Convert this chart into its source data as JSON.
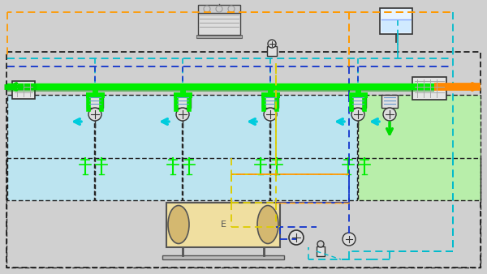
{
  "bg": "#d0d0d0",
  "green_pipe": "#00ee00",
  "green_dark": "#009900",
  "blue_dash": "#1133cc",
  "cyan_dash": "#00bbcc",
  "orange_dash": "#ff9900",
  "yellow_dash": "#ddcc00",
  "cyan_arrow": "#00ccdd",
  "green_arrow": "#00dd00",
  "orange_thick": "#ff8800",
  "pool_blue": "#bce4f0",
  "pool_green": "#b8eeaa",
  "equip_tan": "#f0dfa0",
  "equip_gray": "#cccccc",
  "border_dark": "#111111",
  "white": "#ffffff",
  "light_gray": "#e0e0e0",
  "panel_gray": "#e4e4e4"
}
